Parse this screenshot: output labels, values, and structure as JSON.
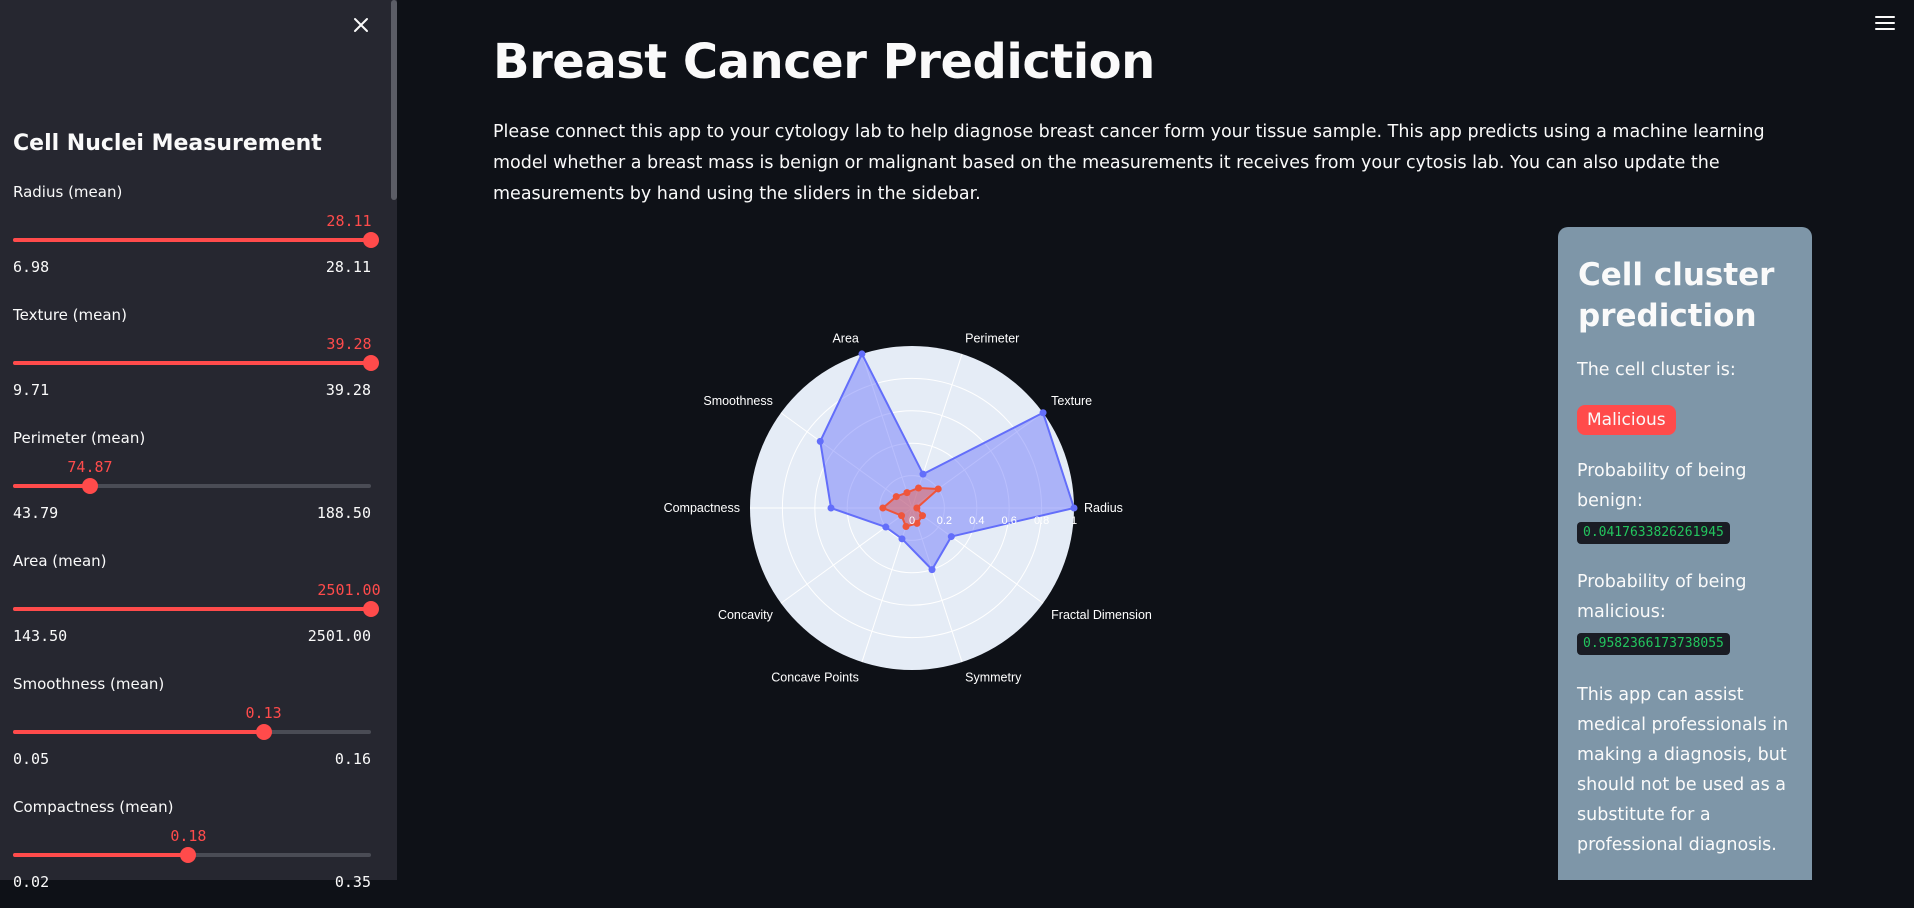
{
  "sidebar": {
    "title": "Cell Nuclei Measurement",
    "sliders": [
      {
        "label": "Radius (mean)",
        "value": "28.11",
        "min": "6.98",
        "max": "28.11",
        "fraction": 1.0
      },
      {
        "label": "Texture (mean)",
        "value": "39.28",
        "min": "9.71",
        "max": "39.28",
        "fraction": 1.0
      },
      {
        "label": "Perimeter (mean)",
        "value": "74.87",
        "min": "43.79",
        "max": "188.50",
        "fraction": 0.215
      },
      {
        "label": "Area (mean)",
        "value": "2501.00",
        "min": "143.50",
        "max": "2501.00",
        "fraction": 1.0
      },
      {
        "label": "Smoothness (mean)",
        "value": "0.13",
        "min": "0.05",
        "max": "0.16",
        "fraction": 0.7
      },
      {
        "label": "Compactness (mean)",
        "value": "0.18",
        "min": "0.02",
        "max": "0.35",
        "fraction": 0.49
      }
    ]
  },
  "main": {
    "title": "Breast Cancer Prediction",
    "description": "Please connect this app to your cytology lab to help diagnose breast cancer form your tissue sample. This app predicts using a machine learning model whether a breast mass is benign or malignant based on the measurements it receives from your cytosis lab. You can also update the measurements by hand using the sliders in the sidebar."
  },
  "chart_data": {
    "type": "radar",
    "categories": [
      "Radius",
      "Texture",
      "Perimeter",
      "Area",
      "Smoothness",
      "Compactness",
      "Concavity",
      "Concave Points",
      "Symmetry",
      "Fractal Dimension"
    ],
    "radial_range": [
      0,
      1
    ],
    "radial_ticks": [
      "0",
      "0.2",
      "0.4",
      "0.6",
      "0.8",
      "1"
    ],
    "series": [
      {
        "color": "#636efa",
        "values": [
          1.0,
          1.0,
          0.22,
          1.0,
          0.7,
          0.5,
          0.2,
          0.2,
          0.4,
          0.3
        ]
      },
      {
        "color": "#ef553b",
        "values": [
          0.03,
          0.2,
          0.13,
          0.1,
          0.12,
          0.18,
          0.08,
          0.12,
          0.1,
          0.08
        ]
      }
    ]
  },
  "prediction": {
    "title": "Cell cluster prediction",
    "cluster_label": "The cell cluster is:",
    "result": "Malicious",
    "benign_label": "Probability of being benign:",
    "benign_value": "0.0417633826261945",
    "malicious_label": "Probability of being malicious:",
    "malicious_value": "0.9582366173738055",
    "disclaimer": "This app can assist medical professionals in making a diagnosis, but should not be used as a substitute for a professional diagnosis."
  }
}
